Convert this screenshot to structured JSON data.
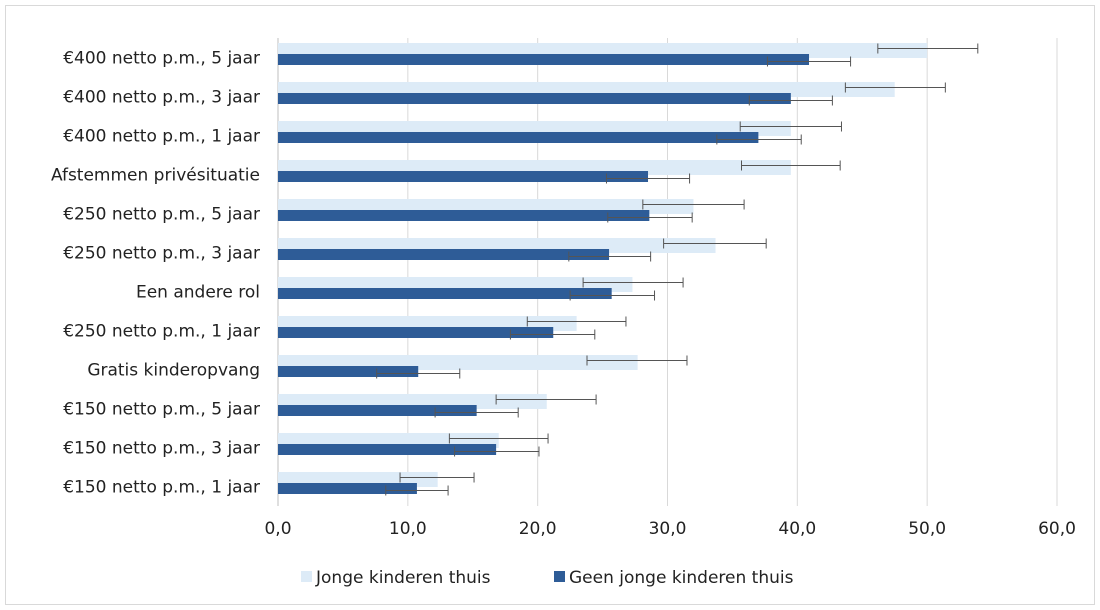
{
  "chart_data": {
    "type": "bar",
    "orientation": "horizontal",
    "categories": [
      "€400 netto p.m., 5 jaar",
      "€400 netto p.m., 3 jaar",
      "€400 netto p.m., 1 jaar",
      "Afstemmen privésituatie",
      "€250 netto p.m., 5 jaar",
      "€250 netto p.m., 3 jaar",
      "Een andere rol",
      "€250 netto p.m., 1 jaar",
      "Gratis kinderopvang",
      "€150 netto p.m., 5 jaar",
      "€150 netto p.m., 3 jaar",
      "€150 netto p.m., 1 jaar"
    ],
    "series": [
      {
        "name": "Jonge kinderen thuis",
        "color": "#ddebf7",
        "values": [
          50.0,
          47.5,
          39.5,
          39.5,
          32.0,
          33.7,
          27.3,
          23.0,
          27.7,
          20.7,
          17.0,
          12.3
        ],
        "error_low": [
          46.2,
          43.7,
          35.6,
          35.7,
          28.1,
          29.7,
          23.5,
          19.2,
          23.8,
          16.8,
          13.2,
          9.4
        ],
        "error_high": [
          53.9,
          51.4,
          43.4,
          43.3,
          35.9,
          37.6,
          31.2,
          26.8,
          31.5,
          24.5,
          20.8,
          15.1
        ]
      },
      {
        "name": "Geen jonge kinderen thuis",
        "color": "#2e5c97",
        "values": [
          40.9,
          39.5,
          37.0,
          28.5,
          28.6,
          25.5,
          25.7,
          21.2,
          10.8,
          15.3,
          16.8,
          10.7
        ],
        "error_low": [
          37.7,
          36.3,
          33.8,
          25.3,
          25.4,
          22.4,
          22.5,
          17.9,
          7.6,
          12.1,
          13.6,
          8.3
        ],
        "error_high": [
          44.1,
          42.7,
          40.3,
          31.7,
          31.9,
          28.7,
          29.0,
          24.4,
          14.0,
          18.5,
          20.1,
          13.1
        ]
      }
    ],
    "xlim": [
      0,
      60
    ],
    "x_ticks": [
      "0,0",
      "10,0",
      "20,0",
      "30,0",
      "40,0",
      "50,0",
      "60,0"
    ],
    "grid": "vertical",
    "legend_position": "bottom",
    "title": "",
    "xlabel": "",
    "ylabel": ""
  }
}
